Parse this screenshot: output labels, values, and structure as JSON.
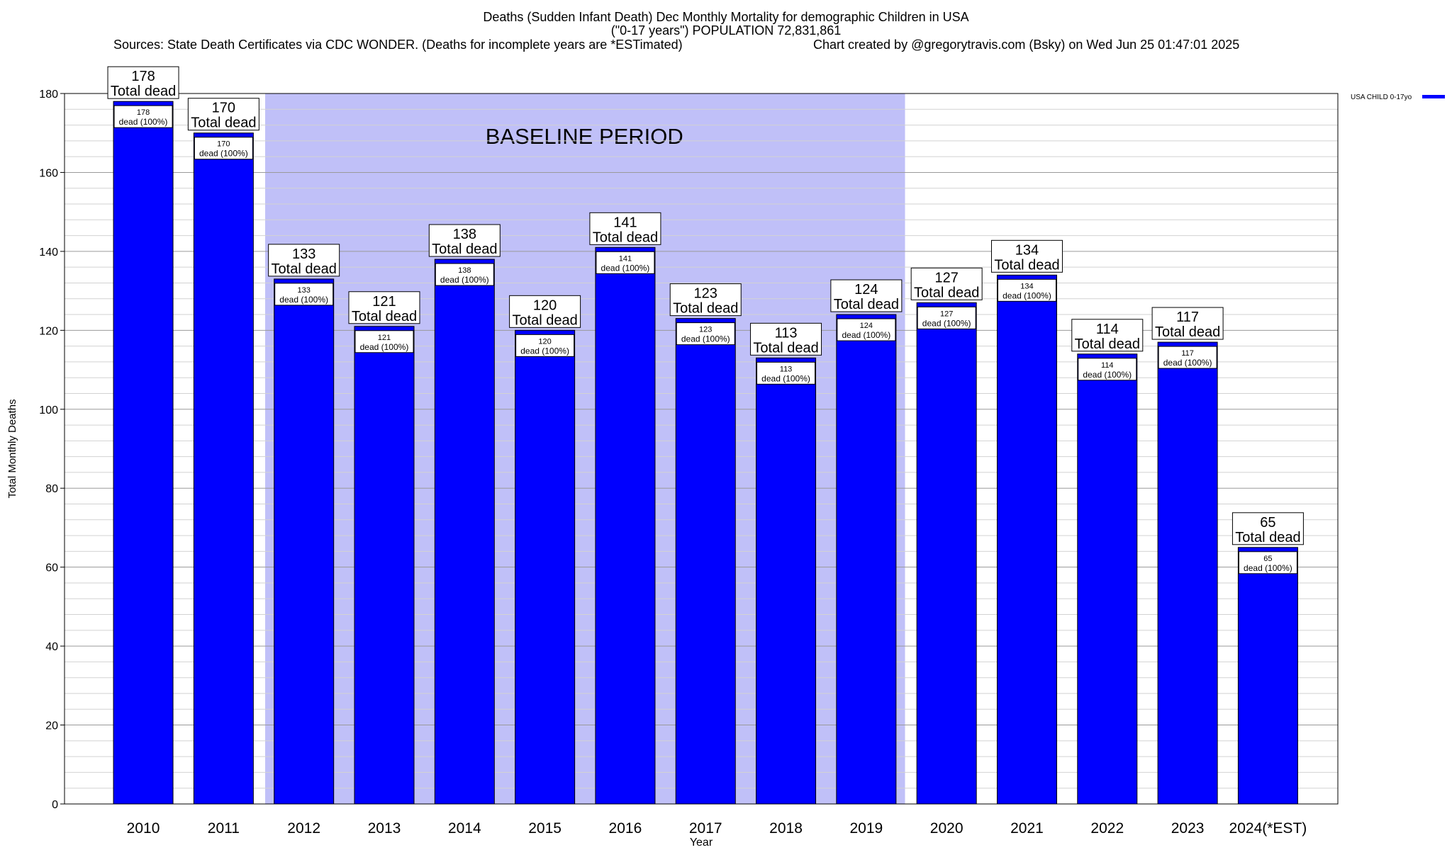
{
  "chart_data": {
    "type": "bar",
    "title": "Deaths (Sudden Infant Death) Dec Monthly Mortality for demographic Children in USA",
    "subtitle": "(\"0-17 years\") POPULATION 72,831,861",
    "source": "Sources: State Death Certificates via CDC WONDER. (Deaths for incomplete years are *ESTimated)",
    "credit": "Chart created by @gregorytravis.com (Bsky) on Wed Jun 25 01:47:01 2025",
    "xlabel": "Year",
    "ylabel": "Total Monthly Deaths",
    "ylim": [
      0,
      180
    ],
    "yticks": [
      0,
      20,
      40,
      60,
      80,
      100,
      120,
      140,
      160,
      180
    ],
    "grid": true,
    "legend_position": "top-right",
    "categories": [
      "2010",
      "2011",
      "2012",
      "2013",
      "2014",
      "2015",
      "2016",
      "2017",
      "2018",
      "2019",
      "2020",
      "2021",
      "2022",
      "2023",
      "2024(*EST)"
    ],
    "series": [
      {
        "name": "USA CHILD 0-17yo",
        "color": "#0000ff",
        "values": [
          178,
          170,
          133,
          121,
          138,
          120,
          141,
          123,
          113,
          124,
          127,
          134,
          114,
          117,
          65
        ]
      }
    ],
    "total_label": "Total dead",
    "inner_label": "dead (100%)",
    "baseline_label": "BASELINE PERIOD",
    "baseline_range": [
      "2012",
      "2019"
    ],
    "baseline_color": "#c0c0f8"
  }
}
